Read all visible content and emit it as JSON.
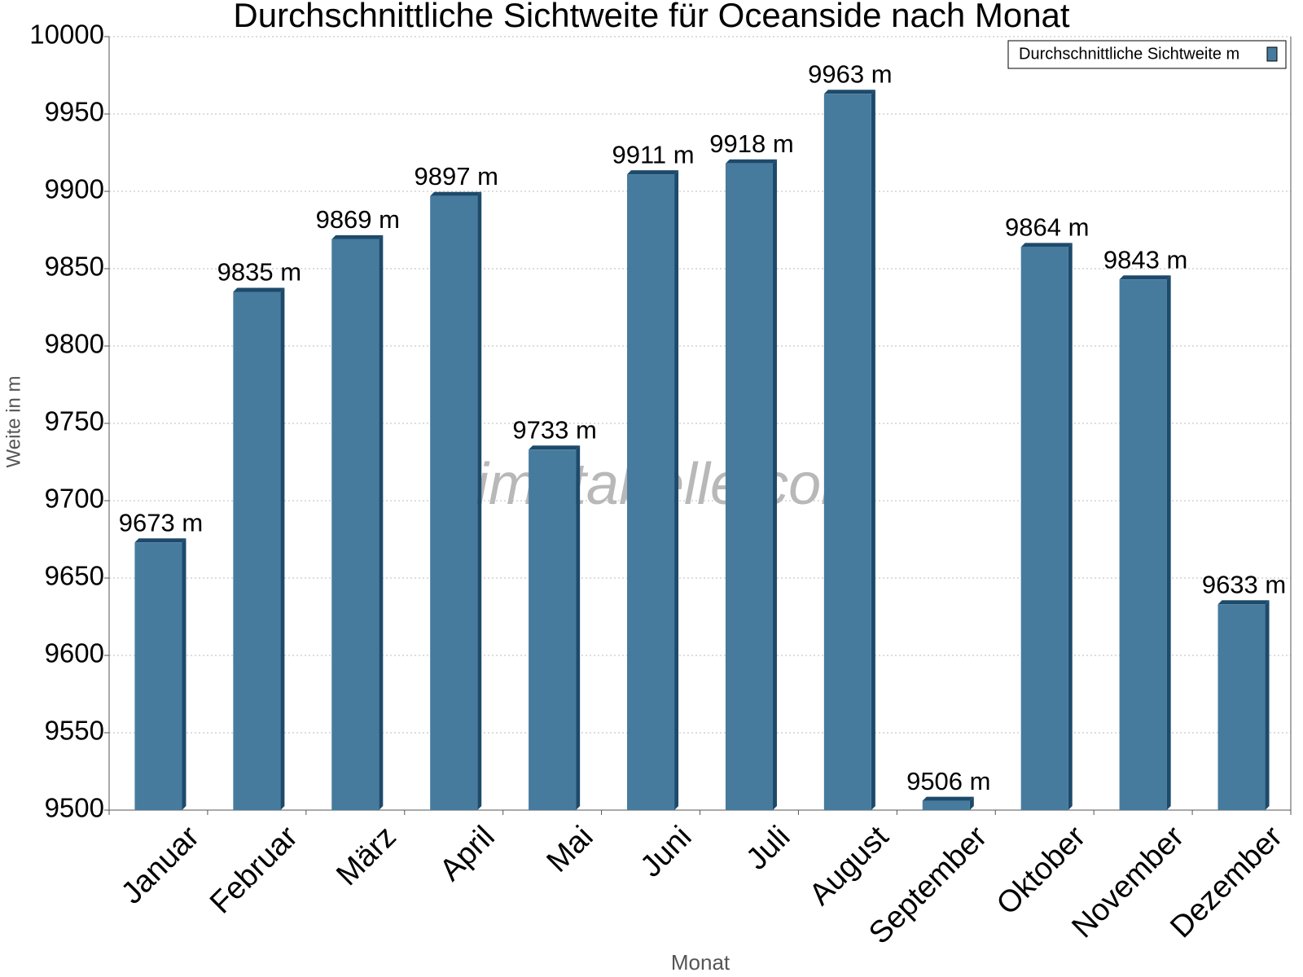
{
  "chart_data": {
    "type": "bar",
    "title": "Durchschnittliche Sichtweite für Oceanside nach Monat",
    "x_label": "Monat",
    "y_label": "Weite in m",
    "watermark": "klimatabelle.com",
    "categories": [
      "Januar",
      "Februar",
      "März",
      "April",
      "Mai",
      "Juni",
      "Juli",
      "August",
      "September",
      "Oktober",
      "November",
      "Dezember"
    ],
    "series": [
      {
        "name": "Durchschnittliche Sichtweite m",
        "color": "#467b9e",
        "values": [
          9673,
          9835,
          9869,
          9897,
          9733,
          9911,
          9918,
          9963,
          9506,
          9864,
          9843,
          9633
        ],
        "value_labels": [
          "9673 m",
          "9835 m",
          "9869 m",
          "9897 m",
          "9733 m",
          "9911 m",
          "9918 m",
          "9963 m",
          "9506 m",
          "9864 m",
          "9843 m",
          "9633 m"
        ]
      }
    ],
    "ylim": [
      9500,
      10000
    ],
    "yticks": [
      9500,
      9550,
      9600,
      9650,
      9700,
      9750,
      9800,
      9850,
      9900,
      9950,
      10000
    ],
    "grid": true,
    "legend": "top-right"
  }
}
